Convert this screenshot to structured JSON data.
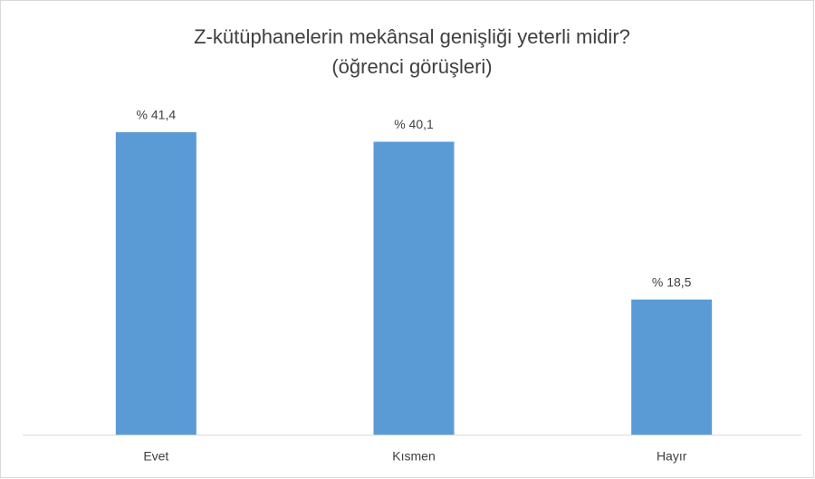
{
  "chart_data": {
    "type": "bar",
    "title": "Z-kütüphanelerin mekânsal genişliği yeterli midir?",
    "subtitle": "(öğrenci görüşleri)",
    "categories": [
      "Evet",
      "Kısmen",
      "Hayır"
    ],
    "values": [
      41.4,
      40.1,
      18.5
    ],
    "value_labels": [
      "% 41,4",
      "% 40,1",
      "% 18,5"
    ],
    "color": "#5b9bd5",
    "ylim": [
      0,
      45
    ]
  }
}
